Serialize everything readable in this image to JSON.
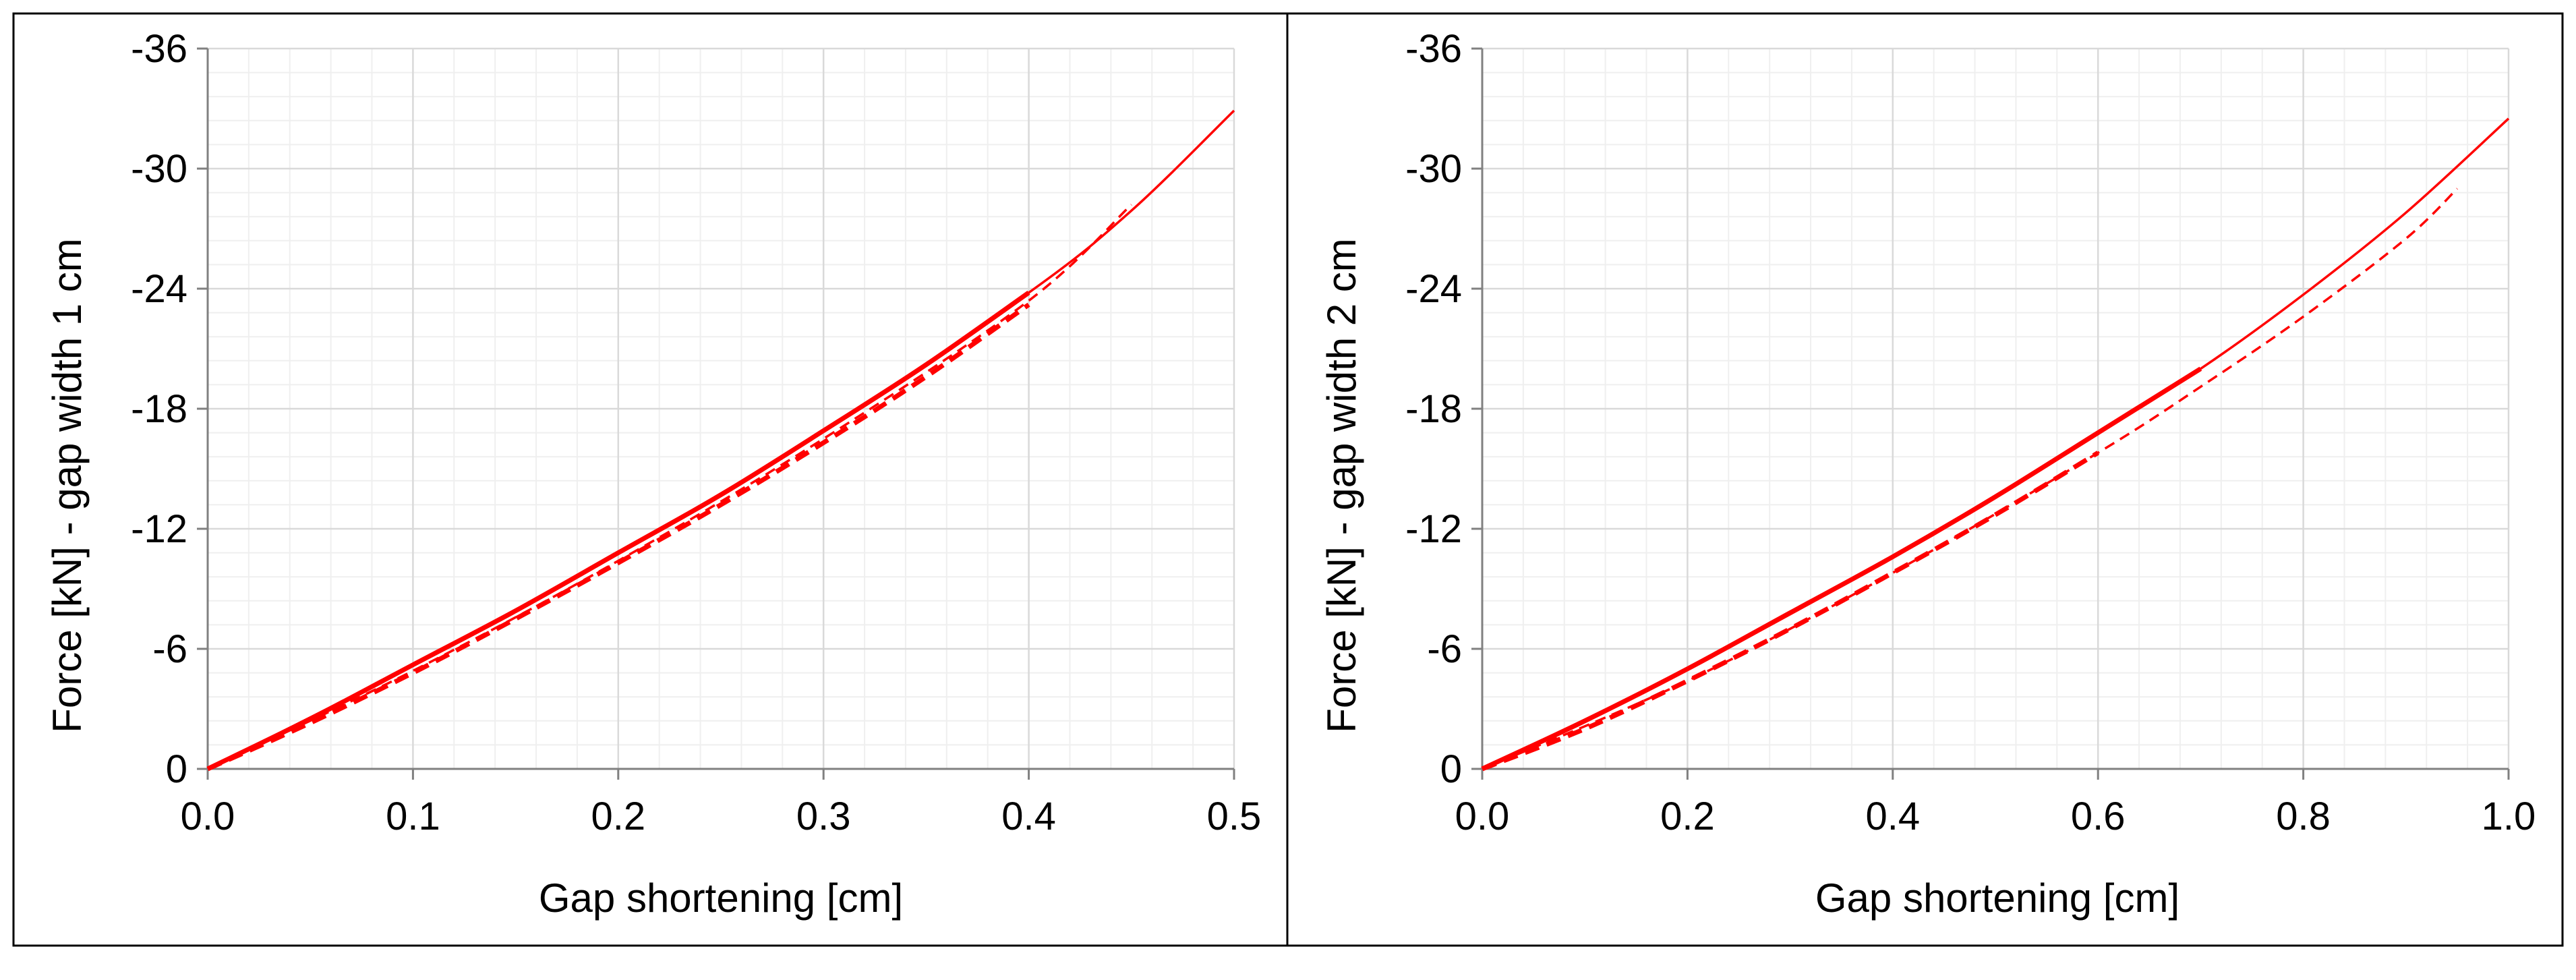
{
  "colors": {
    "series": "#ff0000",
    "grid_major": "#d9d9d9",
    "grid_minor": "#efefef",
    "axis": "#808080",
    "border": "#000000",
    "background": "#ffffff"
  },
  "chart_data": [
    {
      "type": "line",
      "title": "",
      "xlabel": "Gap shortening [cm]",
      "ylabel": "Force [kN] - gap width 1 cm",
      "xlim": [
        0.0,
        0.5
      ],
      "ylim": [
        0,
        -36
      ],
      "xticks": [
        0.0,
        0.1,
        0.2,
        0.3,
        0.4,
        0.5
      ],
      "xtick_labels": [
        "0.0",
        "0.1",
        "0.2",
        "0.3",
        "0.4",
        "0.5"
      ],
      "yticks": [
        0,
        -6,
        -12,
        -18,
        -24,
        -30,
        -36
      ],
      "ytick_labels": [
        "0",
        "-6",
        "-12",
        "-18",
        "-24",
        "-30",
        "-36"
      ],
      "x_minor_step": 0.02,
      "y_minor_step": 1.2,
      "grid": true,
      "legend": "none",
      "series": [
        {
          "name": "solid (thick)",
          "style": "solid",
          "weight": "thick",
          "x": [
            0.0,
            0.05,
            0.1,
            0.15,
            0.2,
            0.25,
            0.3,
            0.35,
            0.4
          ],
          "y": [
            0.0,
            -2.5,
            -5.2,
            -7.9,
            -10.8,
            -13.7,
            -16.9,
            -20.2,
            -23.8
          ]
        },
        {
          "name": "solid (thin)",
          "style": "solid",
          "weight": "thin",
          "x": [
            0.0,
            0.1,
            0.2,
            0.3,
            0.4,
            0.45,
            0.5
          ],
          "y": [
            0.0,
            -5.2,
            -10.8,
            -16.9,
            -23.8,
            -27.9,
            -32.9
          ]
        },
        {
          "name": "dashed (thick)",
          "style": "dashed",
          "weight": "thick",
          "x": [
            0.0,
            0.05,
            0.1,
            0.15,
            0.2,
            0.25,
            0.3,
            0.35,
            0.4
          ],
          "y": [
            0.0,
            -2.3,
            -4.8,
            -7.5,
            -10.3,
            -13.2,
            -16.3,
            -19.6,
            -23.2
          ]
        },
        {
          "name": "dashed (thin)",
          "style": "dashed",
          "weight": "thin",
          "x": [
            0.0,
            0.1,
            0.2,
            0.3,
            0.4,
            0.45
          ],
          "y": [
            0.0,
            -4.9,
            -10.4,
            -16.5,
            -23.4,
            -28.2
          ]
        }
      ]
    },
    {
      "type": "line",
      "title": "",
      "xlabel": "Gap shortening [cm]",
      "ylabel": "Force [kN] - gap width 2 cm",
      "xlim": [
        0.0,
        1.0
      ],
      "ylim": [
        0,
        -36
      ],
      "xticks": [
        0.0,
        0.2,
        0.4,
        0.6,
        0.8,
        1.0
      ],
      "xtick_labels": [
        "0.0",
        "0.2",
        "0.4",
        "0.6",
        "0.8",
        "1.0"
      ],
      "yticks": [
        0,
        -6,
        -12,
        -18,
        -24,
        -30,
        -36
      ],
      "ytick_labels": [
        "0",
        "-6",
        "-12",
        "-18",
        "-24",
        "-30",
        "-36"
      ],
      "x_minor_step": 0.04,
      "y_minor_step": 1.2,
      "grid": true,
      "legend": "none",
      "series": [
        {
          "name": "solid (thick)",
          "style": "solid",
          "weight": "thick",
          "x": [
            0.0,
            0.1,
            0.2,
            0.3,
            0.4,
            0.5,
            0.6,
            0.7
          ],
          "y": [
            0.0,
            -2.4,
            -5.0,
            -7.8,
            -10.6,
            -13.6,
            -16.8,
            -20.0
          ]
        },
        {
          "name": "solid (thin)",
          "style": "solid",
          "weight": "thin",
          "x": [
            0.0,
            0.2,
            0.4,
            0.6,
            0.7,
            0.8,
            0.9,
            1.0
          ],
          "y": [
            0.0,
            -5.0,
            -10.6,
            -16.8,
            -20.0,
            -23.7,
            -27.8,
            -32.5
          ]
        },
        {
          "name": "dashed (thick)",
          "style": "dashed",
          "weight": "thick",
          "x": [
            0.0,
            0.1,
            0.2,
            0.3,
            0.4,
            0.5,
            0.6
          ],
          "y": [
            0.0,
            -2.0,
            -4.4,
            -7.0,
            -9.8,
            -12.7,
            -15.8
          ]
        },
        {
          "name": "dashed (thin)",
          "style": "dashed",
          "weight": "thin",
          "x": [
            0.0,
            0.2,
            0.4,
            0.6,
            0.7,
            0.8,
            0.9,
            0.95
          ],
          "y": [
            0.0,
            -4.4,
            -9.8,
            -15.8,
            -19.1,
            -22.6,
            -26.5,
            -29.0
          ]
        }
      ]
    }
  ]
}
